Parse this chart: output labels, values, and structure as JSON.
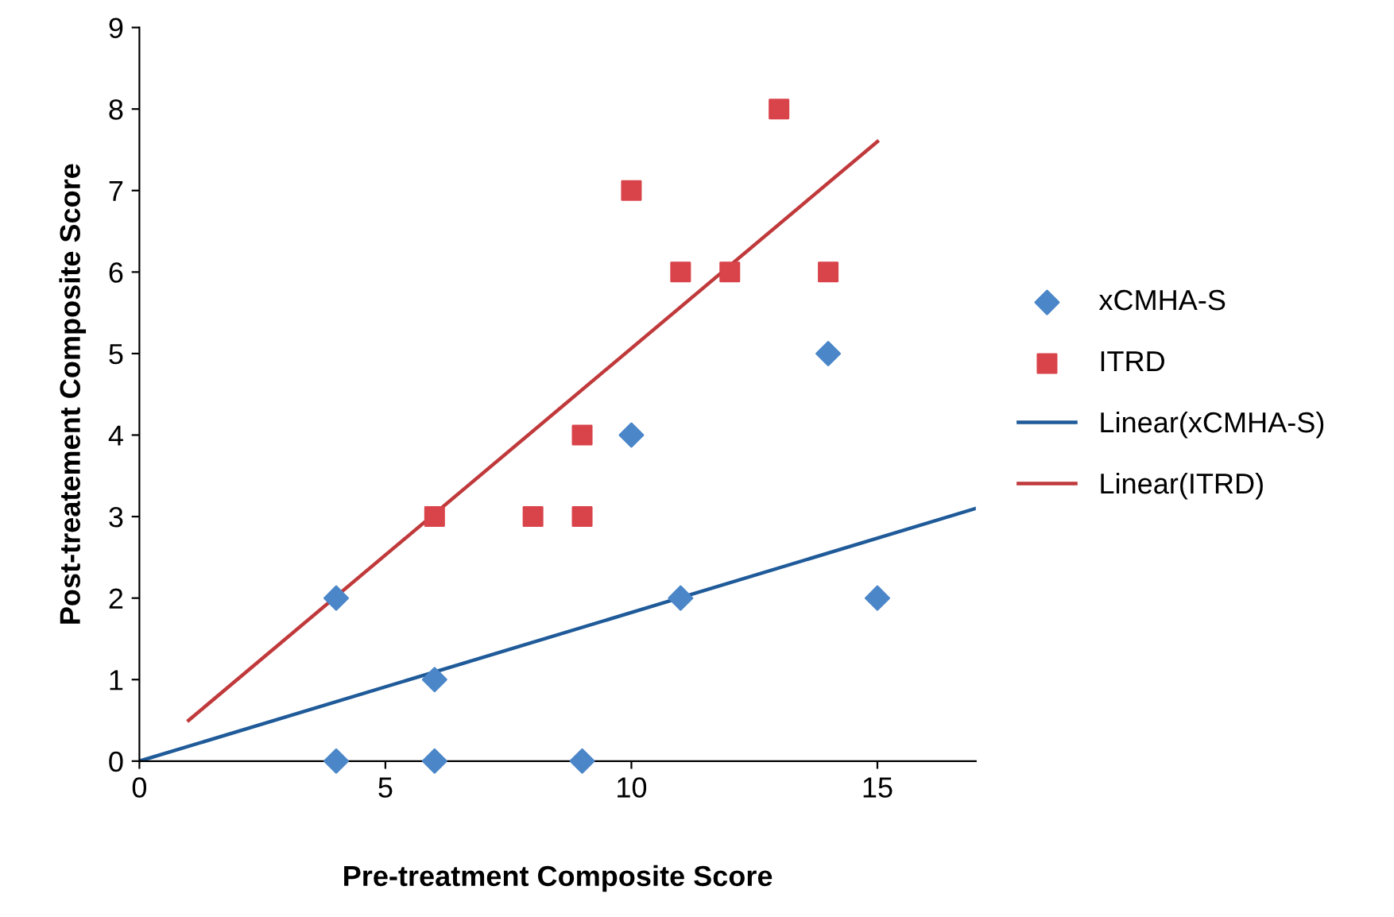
{
  "chart_data": {
    "type": "scatter",
    "xlabel": "Pre-treatment Composite Score",
    "ylabel": "Post-treatement Composite Score",
    "xlim": [
      0,
      17
    ],
    "ylim": [
      0,
      9
    ],
    "xticks": [
      0,
      5,
      10,
      15
    ],
    "yticks": [
      0,
      1,
      2,
      3,
      4,
      5,
      6,
      7,
      8,
      9
    ],
    "grid": false,
    "legend": "right",
    "series": [
      {
        "name": "xCMHA-S",
        "marker": "diamond",
        "color": "#4a86c8",
        "x": [
          4,
          4,
          6,
          6,
          9,
          10,
          11,
          14,
          15
        ],
        "values": [
          2,
          0,
          1,
          0,
          0,
          4,
          2,
          5,
          2
        ]
      },
      {
        "name": "ITRD",
        "marker": "square",
        "color": "#d9434a",
        "x": [
          6,
          8,
          9,
          9,
          10,
          11,
          12,
          13,
          14
        ],
        "values": [
          3,
          3,
          4,
          3,
          7,
          6,
          6,
          8,
          6
        ]
      },
      {
        "name": "Linear(xCMHA-S)",
        "type": "line",
        "marker": "none",
        "color": "#1f5a99",
        "x": [
          0,
          17
        ],
        "values": [
          0,
          3.1
        ]
      },
      {
        "name": "Linear(ITRD)",
        "type": "line",
        "marker": "none",
        "color": "#c0393b",
        "x": [
          1,
          15
        ],
        "values": [
          0.5,
          7.6
        ]
      }
    ]
  }
}
